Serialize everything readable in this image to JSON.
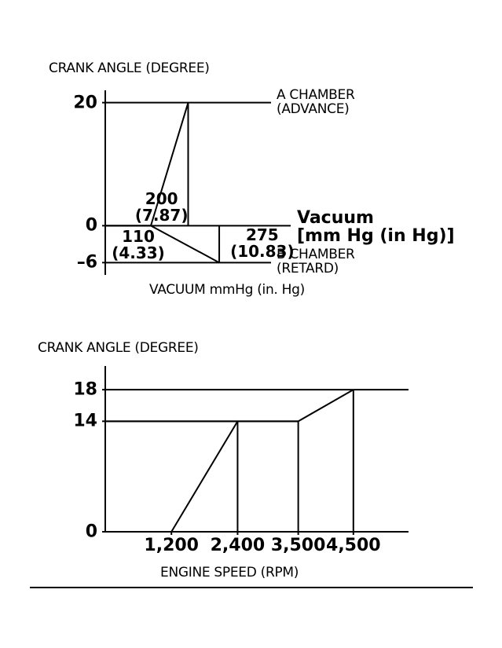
{
  "chart_data": [
    {
      "type": "line",
      "y_label": "CRANK ANGLE (DEGREE)",
      "x_label": "VACUUM mmHg (in. Hg)",
      "annotation": "Vacuum\n[mm Hg (in Hg)]",
      "xlim": [
        0,
        400
      ],
      "ylim": [
        -8,
        22
      ],
      "yticks": [
        20,
        0,
        {
          "value": -6,
          "label": "–6"
        }
      ],
      "xticks": [
        {
          "value": 110,
          "label": "110\n(4.33)"
        },
        {
          "value": 200,
          "label": "200\n(7.87)"
        },
        {
          "value": 275,
          "label": "275\n(10.83)"
        }
      ],
      "series": [
        {
          "name": "A CHAMBER\n(ADVANCE)",
          "color": "#000000",
          "x": [
            110,
            200
          ],
          "values": [
            0,
            20
          ]
        },
        {
          "name": "B CHAMBER\n(RETARD)",
          "color": "#000000",
          "x": [
            110,
            275
          ],
          "values": [
            0,
            -6
          ]
        }
      ]
    },
    {
      "type": "line",
      "y_label": "CRANK ANGLE (DEGREE)",
      "x_label": "ENGINE SPEED (RPM)",
      "xlim": [
        0,
        5500
      ],
      "ylim": [
        0,
        21
      ],
      "yticks": [
        18,
        14,
        0
      ],
      "xticks": [
        {
          "value": 1200,
          "label": "1,200"
        },
        {
          "value": 2400,
          "label": "2,400"
        },
        {
          "value": 3500,
          "label": "3,500"
        },
        {
          "value": 4500,
          "label": "4,500"
        }
      ],
      "series": [
        {
          "color": "#000000",
          "x": [
            1200,
            2400,
            3500,
            4500
          ],
          "values": [
            0,
            14,
            14,
            18
          ]
        }
      ]
    }
  ]
}
